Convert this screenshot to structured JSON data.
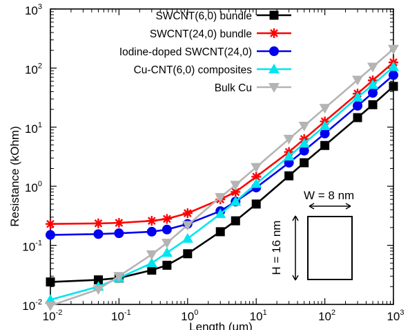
{
  "chart_data": {
    "type": "line",
    "title": "",
    "xlabel": "Length (um)",
    "ylabel": "Resistance (kOhm)",
    "xscale": "log",
    "yscale": "log",
    "xlim": [
      0.01,
      1000
    ],
    "ylim": [
      0.01,
      1000
    ],
    "x_ticks": [
      {
        "base": "10",
        "exp": "-2"
      },
      {
        "base": "10",
        "exp": "-1"
      },
      {
        "base": "10",
        "exp": "0"
      },
      {
        "base": "10",
        "exp": "1"
      },
      {
        "base": "10",
        "exp": "2"
      },
      {
        "base": "10",
        "exp": "3"
      }
    ],
    "y_ticks": [
      {
        "base": "10",
        "exp": "-2"
      },
      {
        "base": "10",
        "exp": "-1"
      },
      {
        "base": "10",
        "exp": "0"
      },
      {
        "base": "10",
        "exp": "1"
      },
      {
        "base": "10",
        "exp": "2"
      },
      {
        "base": "10",
        "exp": "3"
      }
    ],
    "grid": false,
    "legend_position": "top-right",
    "series": [
      {
        "name": "SWCNT(6,0) bundle",
        "color": "#000000",
        "marker": "square",
        "x": [
          0.01,
          0.05,
          0.1,
          0.3,
          0.5,
          1,
          3,
          5,
          10,
          30,
          50,
          100,
          300,
          500,
          1000
        ],
        "y": [
          0.024,
          0.026,
          0.028,
          0.038,
          0.046,
          0.072,
          0.17,
          0.26,
          0.5,
          1.5,
          2.5,
          4.9,
          14.5,
          24,
          49
        ]
      },
      {
        "name": "SWCNT(24,0) bundle",
        "color": "#ff0000",
        "marker": "asterisk",
        "x": [
          0.01,
          0.05,
          0.1,
          0.3,
          0.5,
          1,
          3,
          5,
          10,
          30,
          50,
          100,
          300,
          500,
          1000
        ],
        "y": [
          0.23,
          0.235,
          0.24,
          0.26,
          0.28,
          0.35,
          0.6,
          0.8,
          1.45,
          3.8,
          6.3,
          12.5,
          37,
          62,
          125
        ]
      },
      {
        "name": "Iodine-doped SWCNT(24,0)",
        "color": "#0000ee",
        "marker": "circle",
        "x": [
          0.01,
          0.05,
          0.1,
          0.3,
          0.5,
          1,
          3,
          5,
          10,
          30,
          50,
          100,
          300,
          500,
          1000
        ],
        "y": [
          0.15,
          0.155,
          0.16,
          0.17,
          0.185,
          0.23,
          0.38,
          0.55,
          0.95,
          2.5,
          4,
          7.8,
          23,
          38,
          76
        ]
      },
      {
        "name": "Cu-CNT(6,0) composites",
        "color": "#00e5ee",
        "marker": "triangle-up",
        "x": [
          0.01,
          0.05,
          0.1,
          0.3,
          0.5,
          1,
          3,
          5,
          10,
          30,
          50,
          100,
          300,
          500,
          1000
        ],
        "y": [
          0.012,
          0.02,
          0.028,
          0.05,
          0.075,
          0.13,
          0.34,
          0.55,
          1.1,
          3.2,
          5.3,
          10.5,
          32,
          52,
          105
        ]
      },
      {
        "name": "Bulk Cu",
        "color": "#b4b4b4",
        "marker": "triangle-down",
        "x": [
          0.01,
          0.05,
          0.1,
          0.3,
          0.5,
          1,
          3,
          5,
          10,
          30,
          50,
          100,
          300,
          500,
          1000
        ],
        "y": [
          0.0095,
          0.018,
          0.03,
          0.07,
          0.11,
          0.22,
          0.65,
          1.05,
          2.1,
          6.3,
          10.5,
          21,
          63,
          105,
          210
        ]
      }
    ],
    "annotations": {
      "width_label": "W = 8 nm",
      "height_label": "H = 16 nm"
    }
  }
}
